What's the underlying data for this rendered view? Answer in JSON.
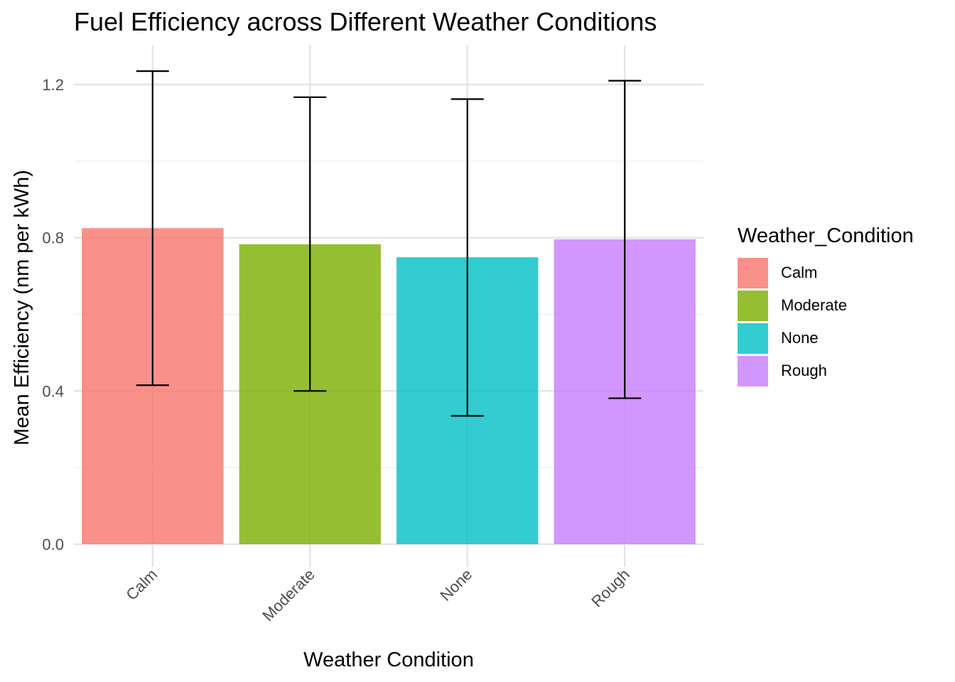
{
  "chart_data": {
    "type": "bar",
    "title": "Fuel Efficiency across Different Weather Conditions",
    "xlabel": "Weather Condition",
    "ylabel": "Mean Efficiency (nm per kWh)",
    "categories": [
      "Calm",
      "Moderate",
      "None",
      "Rough"
    ],
    "values": [
      0.825,
      0.783,
      0.749,
      0.796
    ],
    "error_low": [
      0.415,
      0.4,
      0.335,
      0.381
    ],
    "error_high": [
      1.235,
      1.167,
      1.162,
      1.21
    ],
    "colors": [
      "#F8766D",
      "#7CAE00",
      "#00BFC4",
      "#C77CFF"
    ],
    "bar_opacity": 0.8,
    "ylim": [
      0.0,
      1.3
    ],
    "yticks": [
      0.0,
      0.4,
      0.8,
      1.2
    ],
    "ytick_labels": [
      "0.0",
      "0.4",
      "0.8",
      "1.2"
    ],
    "grid": true,
    "legend": {
      "title": "Weather_Condition",
      "position": "right",
      "items": [
        "Calm",
        "Moderate",
        "None",
        "Rough"
      ]
    }
  }
}
